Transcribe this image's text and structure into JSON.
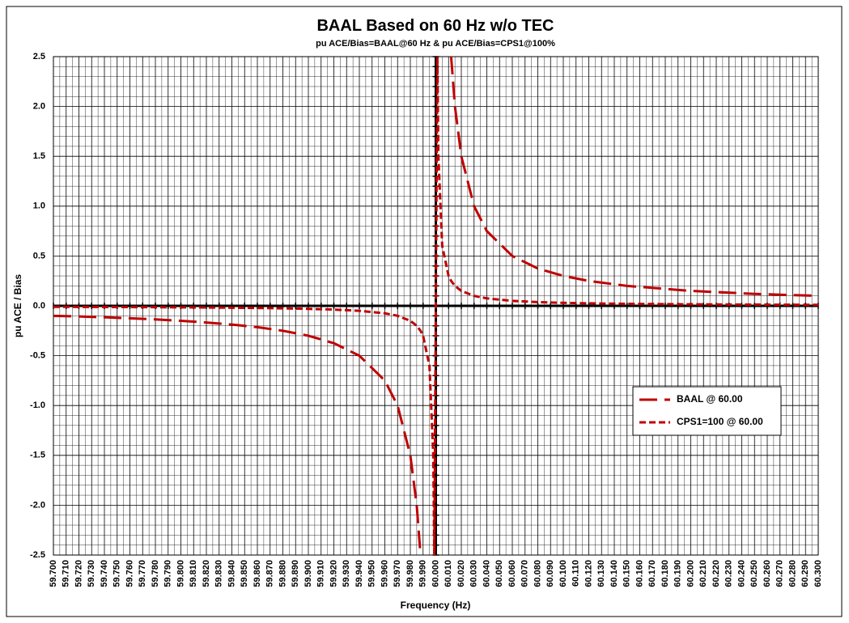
{
  "chart_data": {
    "type": "line",
    "title": "BAAL Based on 60 Hz w/o TEC",
    "subtitle": "pu ACE/Bias=BAAL@60 Hz & pu ACE/Bias=CPS1@100%",
    "x_label": "Frequency (Hz)",
    "y_label": "pu ACE / Bias",
    "x": [
      59.7,
      59.72,
      59.74,
      59.76,
      59.78,
      59.8,
      59.82,
      59.84,
      59.86,
      59.88,
      59.9,
      59.92,
      59.94,
      59.96,
      59.97,
      59.98,
      59.985,
      59.988,
      59.99,
      59.995,
      59.998,
      59.9988,
      60.0012,
      60.002,
      60.005,
      60.01,
      60.012,
      60.015,
      60.02,
      60.03,
      60.04,
      60.06,
      60.08,
      60.1,
      60.12,
      60.15,
      60.2,
      60.25,
      60.3
    ],
    "series": [
      {
        "name": "BAAL @ 60.00",
        "color": "#c00000",
        "dash": "long",
        "values": [
          -0.1,
          -0.107,
          -0.115,
          -0.125,
          -0.136,
          -0.15,
          -0.167,
          -0.188,
          -0.214,
          -0.25,
          -0.3,
          -0.375,
          -0.5,
          -0.75,
          -1.0,
          -1.5,
          -2.0,
          -2.5,
          null,
          null,
          null,
          null,
          null,
          null,
          null,
          null,
          2.5,
          2.0,
          1.5,
          1.0,
          0.75,
          0.5,
          0.375,
          0.3,
          0.25,
          0.2,
          0.15,
          0.12,
          0.1
        ]
      },
      {
        "name": "CPS1=100 @ 60.00",
        "color": "#c00000",
        "dash": "short",
        "values": [
          -0.01,
          -0.0107,
          -0.0115,
          -0.0125,
          -0.0136,
          -0.015,
          -0.0167,
          -0.0188,
          -0.0214,
          -0.025,
          -0.03,
          -0.0375,
          -0.05,
          -0.075,
          -0.1,
          -0.15,
          -0.2,
          -0.25,
          -0.3,
          -0.6,
          -1.5,
          -2.5,
          2.5,
          1.5,
          0.6,
          0.3,
          0.25,
          0.2,
          0.15,
          0.1,
          0.075,
          0.05,
          0.0375,
          0.03,
          0.025,
          0.02,
          0.015,
          0.012,
          0.01
        ]
      }
    ],
    "xlim": [
      59.7,
      60.3
    ],
    "xticks": [
      {
        "value": 59.7,
        "label": "59.700"
      },
      {
        "value": 59.71,
        "label": "59.710"
      },
      {
        "value": 59.72,
        "label": "59.720"
      },
      {
        "value": 59.73,
        "label": "59.730"
      },
      {
        "value": 59.74,
        "label": "59.740"
      },
      {
        "value": 59.75,
        "label": "59.750"
      },
      {
        "value": 59.76,
        "label": "59.760"
      },
      {
        "value": 59.77,
        "label": "59.770"
      },
      {
        "value": 59.78,
        "label": "59.780"
      },
      {
        "value": 59.79,
        "label": "59.790"
      },
      {
        "value": 59.8,
        "label": "59.800"
      },
      {
        "value": 59.81,
        "label": "59.810"
      },
      {
        "value": 59.82,
        "label": "59.820"
      },
      {
        "value": 59.83,
        "label": "59.830"
      },
      {
        "value": 59.84,
        "label": "59.840"
      },
      {
        "value": 59.85,
        "label": "59.850"
      },
      {
        "value": 59.86,
        "label": "59.860"
      },
      {
        "value": 59.87,
        "label": "59.870"
      },
      {
        "value": 59.88,
        "label": "59.880"
      },
      {
        "value": 59.89,
        "label": "59.890"
      },
      {
        "value": 59.9,
        "label": "59.900"
      },
      {
        "value": 59.91,
        "label": "59.910"
      },
      {
        "value": 59.92,
        "label": "59.920"
      },
      {
        "value": 59.93,
        "label": "59.930"
      },
      {
        "value": 59.94,
        "label": "59.940"
      },
      {
        "value": 59.95,
        "label": "59.950"
      },
      {
        "value": 59.96,
        "label": "59.960"
      },
      {
        "value": 59.97,
        "label": "59.970"
      },
      {
        "value": 59.98,
        "label": "59.980"
      },
      {
        "value": 59.99,
        "label": "59.990"
      },
      {
        "value": 60.0,
        "label": "60.000"
      },
      {
        "value": 60.01,
        "label": "60.010"
      },
      {
        "value": 60.02,
        "label": "60.020"
      },
      {
        "value": 60.03,
        "label": "60.030"
      },
      {
        "value": 60.04,
        "label": "60.040"
      },
      {
        "value": 60.05,
        "label": "60.050"
      },
      {
        "value": 60.06,
        "label": "60.060"
      },
      {
        "value": 60.07,
        "label": "60.070"
      },
      {
        "value": 60.08,
        "label": "60.080"
      },
      {
        "value": 60.09,
        "label": "60.090"
      },
      {
        "value": 60.1,
        "label": "60.100"
      },
      {
        "value": 60.11,
        "label": "60.110"
      },
      {
        "value": 60.12,
        "label": "60.120"
      },
      {
        "value": 60.13,
        "label": "60.130"
      },
      {
        "value": 60.14,
        "label": "60.140"
      },
      {
        "value": 60.15,
        "label": "60.150"
      },
      {
        "value": 60.16,
        "label": "60.160"
      },
      {
        "value": 60.17,
        "label": "60.170"
      },
      {
        "value": 60.18,
        "label": "60.180"
      },
      {
        "value": 60.19,
        "label": "60.190"
      },
      {
        "value": 60.2,
        "label": "60.200"
      },
      {
        "value": 60.21,
        "label": "60.210"
      },
      {
        "value": 60.22,
        "label": "60.220"
      },
      {
        "value": 60.23,
        "label": "60.230"
      },
      {
        "value": 60.24,
        "label": "60.240"
      },
      {
        "value": 60.25,
        "label": "60.250"
      },
      {
        "value": 60.26,
        "label": "60.260"
      },
      {
        "value": 60.27,
        "label": "60.270"
      },
      {
        "value": 60.28,
        "label": "60.280"
      },
      {
        "value": 60.29,
        "label": "60.290"
      },
      {
        "value": 60.3,
        "label": "60.300"
      }
    ],
    "ylim": [
      -2.5,
      2.5
    ],
    "yticks": [
      2.5,
      {
        "value": 2,
        "label": "2.0"
      },
      1.5,
      {
        "value": 1,
        "label": "1.0"
      },
      0.5,
      {
        "value": 0,
        "label": "0.0"
      },
      -0.5,
      {
        "value": -1,
        "label": "-1.0"
      },
      -1.5,
      {
        "value": -2,
        "label": "-2.0"
      },
      -2.5
    ],
    "grid": true,
    "legend": "right"
  }
}
